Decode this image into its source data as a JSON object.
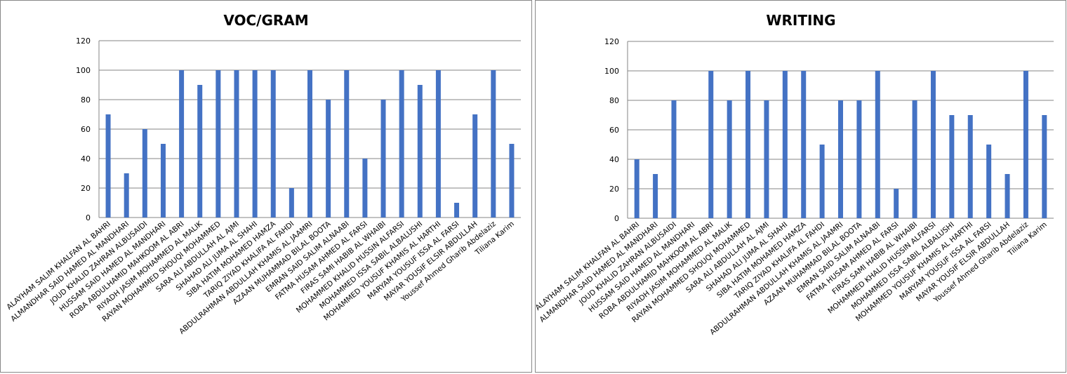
{
  "chart_data": [
    {
      "type": "bar",
      "title": "VOC/GRAM",
      "ylim": [
        0,
        120
      ],
      "yticks": [
        0,
        20,
        40,
        60,
        80,
        100,
        120
      ],
      "grid": true,
      "color": "#4472C4",
      "categories": [
        "ALAYHAM SALIM KHALFAN AL BAHRI",
        "ALMANDHAR SAID HAMED AL MANDHARI",
        "JOUD KHALID ZAHRAN ALBUSAIDI",
        "HUSSAM SAID HAMED AL MANDHARI",
        "ROBA ABDULHAMID MAHKOOM AL ABRI",
        "RIYADH JASIM MOHAMMED  AL MALIK",
        "RAYAN MOHAMMED  SHOUQI MOHAMMED",
        "SARA ALI ABDULLAH AL AJMI",
        "SHAHAD ALI JUMA  AL SHAHI",
        "SIBA HATIM  MOHAMED HAMZA",
        "TARIQ ZIYAD KHALIFA AL FAHDI",
        "ABDULRAHMAN ABDULLAH KHAMIS AL JAAMRI",
        "AZAAN MUHAMMAD  BILAL BOOTA",
        "EMRAN SAID SALIM ALNAABI",
        "FATMA HUSAM  AHMED AL FARSI",
        "FIRAS SAMI HABIB AL WHAIBI",
        "MOHAMMED KHALID HUSSIN  ALFARSI",
        "MOHAMMED ISSA SABIL ALBALUSHI",
        "MOHAMMED YOUSUF KHAMIS AL HARTHI",
        "MARYAM YOUSUF  ISSA AL FARSI",
        "MAYAR YOUSIF ELSIR ABDULLAH",
        "Youssef Ahmed Gharib Abdelaziz",
        "Tiliana  Karim"
      ],
      "values": [
        70,
        30,
        60,
        50,
        100,
        90,
        100,
        100,
        100,
        100,
        20,
        100,
        80,
        100,
        40,
        80,
        100,
        90,
        100,
        10,
        70,
        100,
        50
      ]
    },
    {
      "type": "bar",
      "title": "WRITING",
      "ylim": [
        0,
        120
      ],
      "yticks": [
        0,
        20,
        40,
        60,
        80,
        100,
        120
      ],
      "grid": true,
      "color": "#4472C4",
      "categories": [
        "ALAYHAM SALIM KHALFAN AL BAHRI",
        "ALMANDHAR SAID HAMED AL MANDHARI",
        "JOUD KHALID ZAHRAN ALBUSAIDI",
        "HUSSAM SAID HAMED AL MANDHARI",
        "ROBA ABDULHAMID MAHKOOM AL ABRI",
        "RIYADH JASIM MOHAMMED  AL MALIK",
        "RAYAN MOHAMMED  SHOUQI MOHAMMED",
        "SARA ALI ABDULLAH AL AJMI",
        "SHAHAD ALI JUMA  AL SHAHI",
        "SIBA HATIM  MOHAMED HAMZA",
        "TARIQ ZIYAD KHALIFA AL FAHDI",
        "ABDULRAHMAN ABDULLAH KHAMIS AL JAAMRI",
        "AZAAN MUHAMMAD  BILAL BOOTA",
        "EMRAN SAID SALIM ALNAABI",
        "FATMA HUSAM  AHMED AL FARSI",
        "FIRAS SAMI HABIB AL WHAIBI",
        "MOHAMMED KHALID HUSSIN  ALFARSI",
        "MOHAMMED ISSA SABIL ALBALUSHI",
        "MOHAMMED YOUSUF KHAMIS AL HARTHI",
        "MARYAM YOUSUF  ISSA AL FARSI",
        "MAYAR YOUSIF ELSIR ABDULLAH",
        "Youssef Ahmed Gharib Abdelaziz",
        "Tiliana  Karim"
      ],
      "values": [
        40,
        30,
        80,
        0,
        100,
        80,
        100,
        80,
        100,
        100,
        50,
        80,
        80,
        100,
        20,
        80,
        100,
        70,
        70,
        50,
        30,
        100,
        70
      ]
    }
  ]
}
